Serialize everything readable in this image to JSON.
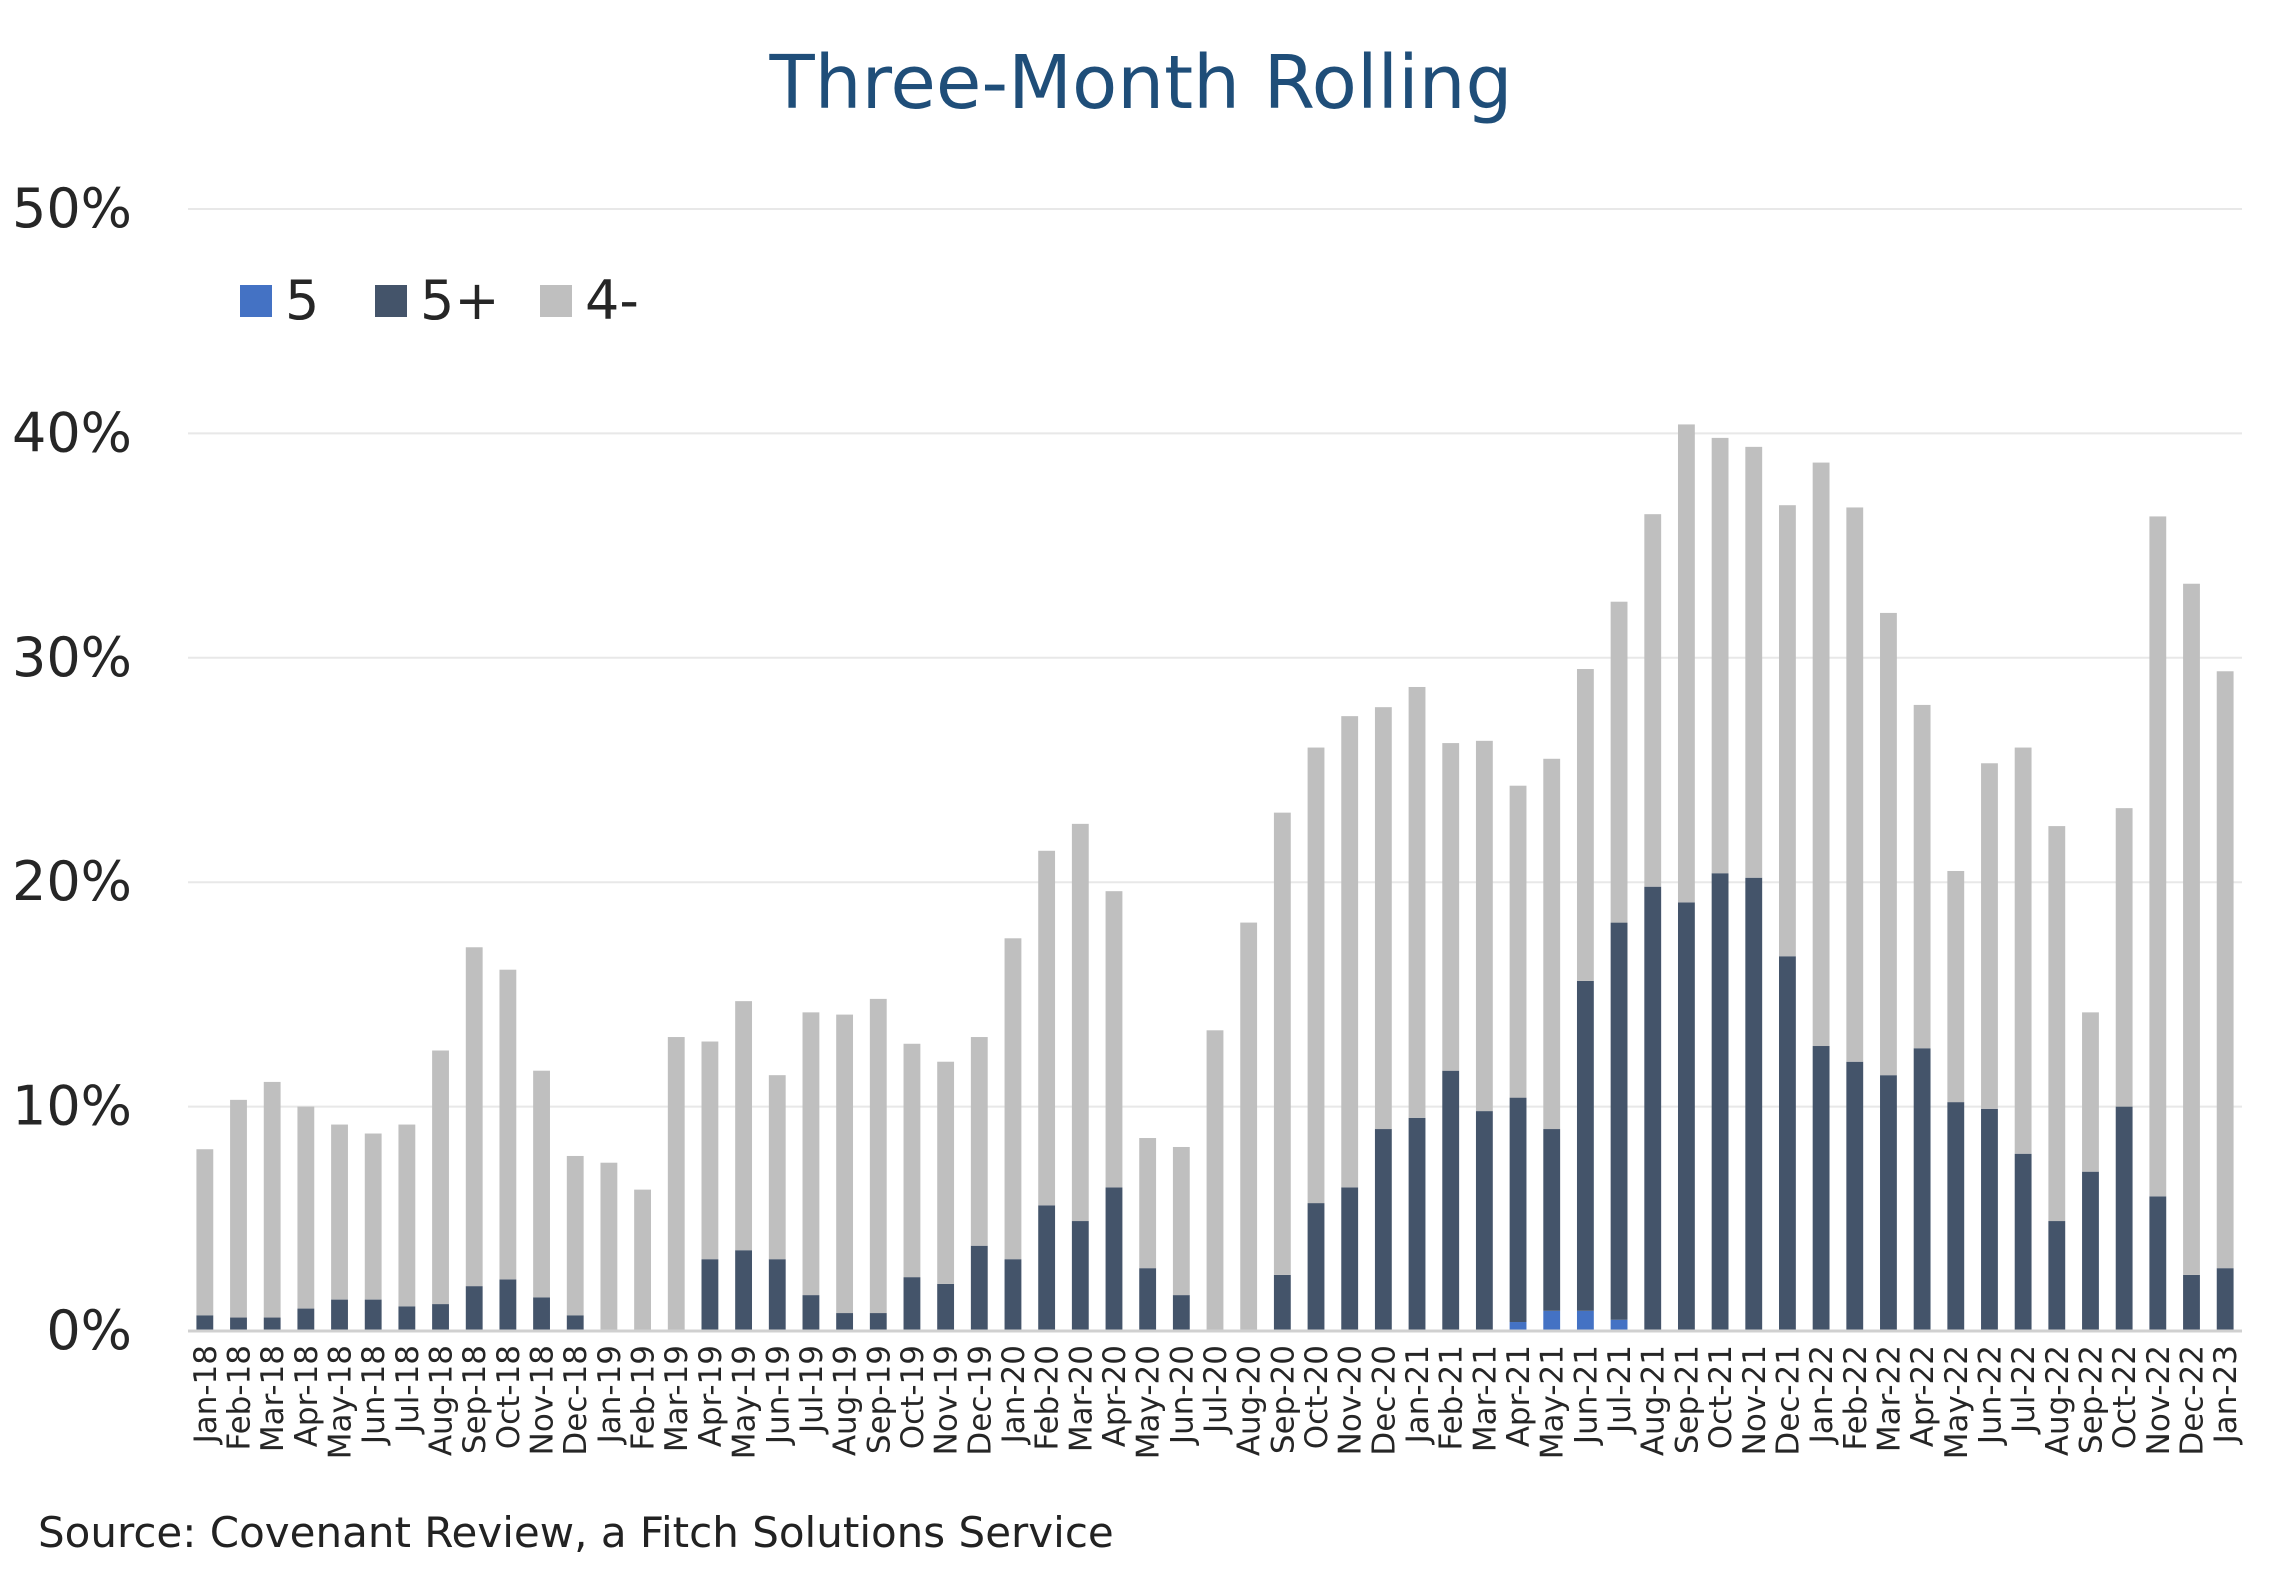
{
  "chart_data": {
    "type": "bar",
    "stacked": true,
    "title": "Three-Month Rolling",
    "source": "Source: Covenant Review, a Fitch Solutions Service",
    "xlabel": "",
    "ylabel": "",
    "ylim": [
      0,
      50
    ],
    "y_ticks": [
      "0%",
      "10%",
      "20%",
      "30%",
      "40%",
      "50%"
    ],
    "y_unit": "%",
    "grid": true,
    "legend_position": "top-left",
    "categories": [
      "Jan-18",
      "Feb-18",
      "Mar-18",
      "Apr-18",
      "May-18",
      "Jun-18",
      "Jul-18",
      "Aug-18",
      "Sep-18",
      "Oct-18",
      "Nov-18",
      "Dec-18",
      "Jan-19",
      "Feb-19",
      "Mar-19",
      "Apr-19",
      "May-19",
      "Jun-19",
      "Jul-19",
      "Aug-19",
      "Sep-19",
      "Oct-19",
      "Nov-19",
      "Dec-19",
      "Jan-20",
      "Feb-20",
      "Mar-20",
      "Apr-20",
      "May-20",
      "Jun-20",
      "Jul-20",
      "Aug-20",
      "Sep-20",
      "Oct-20",
      "Nov-20",
      "Dec-20",
      "Jan-21",
      "Feb-21",
      "Mar-21",
      "Apr-21",
      "May-21",
      "Jun-21",
      "Jul-21",
      "Aug-21",
      "Sep-21",
      "Oct-21",
      "Nov-21",
      "Dec-21",
      "Jan-22",
      "Feb-22",
      "Mar-22",
      "Apr-22",
      "May-22",
      "Jun-22",
      "Jul-22",
      "Aug-22",
      "Sep-22",
      "Oct-22",
      "Nov-22",
      "Dec-22",
      "Jan-23"
    ],
    "series": [
      {
        "name": "5",
        "color": "#4472c4",
        "values": [
          0,
          0,
          0,
          0,
          0,
          0,
          0,
          0,
          0,
          0,
          0,
          0,
          0,
          0,
          0,
          0,
          0,
          0,
          0,
          0,
          0,
          0,
          0,
          0,
          0,
          0,
          0,
          0,
          0,
          0,
          0,
          0,
          0,
          0,
          0,
          0,
          0,
          0,
          0,
          0.4,
          0.9,
          0.9,
          0.5,
          0,
          0,
          0,
          0,
          0,
          0,
          0,
          0,
          0,
          0,
          0,
          0,
          0,
          0,
          0,
          0,
          0,
          0
        ]
      },
      {
        "name": "5+",
        "color": "#44546a",
        "values": [
          0.7,
          0.6,
          0.6,
          1.0,
          1.4,
          1.4,
          1.1,
          1.2,
          2.0,
          2.3,
          1.5,
          0.7,
          0,
          0,
          0,
          3.2,
          3.6,
          3.2,
          1.6,
          0.8,
          0.8,
          2.4,
          2.1,
          3.8,
          3.2,
          5.6,
          4.9,
          6.4,
          2.8,
          1.6,
          0,
          0,
          2.5,
          5.7,
          6.4,
          9.0,
          9.5,
          11.6,
          9.8,
          10.0,
          8.1,
          14.7,
          17.7,
          19.8,
          19.1,
          20.4,
          20.2,
          16.7,
          12.7,
          12.0,
          11.4,
          12.6,
          10.2,
          9.9,
          7.9,
          4.9,
          7.1,
          10.0,
          6.0,
          2.5,
          2.8
        ]
      },
      {
        "name": "4-",
        "color": "#bfbfbf",
        "values": [
          7.4,
          9.7,
          10.5,
          9.0,
          7.8,
          7.4,
          8.1,
          11.3,
          15.1,
          13.8,
          10.1,
          7.1,
          7.5,
          6.3,
          13.1,
          9.7,
          11.1,
          8.2,
          12.6,
          13.3,
          14.0,
          10.4,
          9.9,
          9.3,
          14.3,
          15.8,
          17.7,
          13.2,
          5.8,
          6.6,
          13.4,
          18.2,
          20.6,
          20.3,
          21.0,
          18.8,
          19.2,
          14.6,
          16.5,
          13.9,
          16.5,
          13.9,
          14.3,
          16.6,
          21.3,
          19.4,
          19.2,
          20.1,
          26.0,
          24.7,
          20.6,
          15.3,
          10.3,
          15.4,
          18.1,
          17.6,
          7.1,
          13.3,
          30.3,
          30.8,
          26.6
        ]
      }
    ]
  }
}
